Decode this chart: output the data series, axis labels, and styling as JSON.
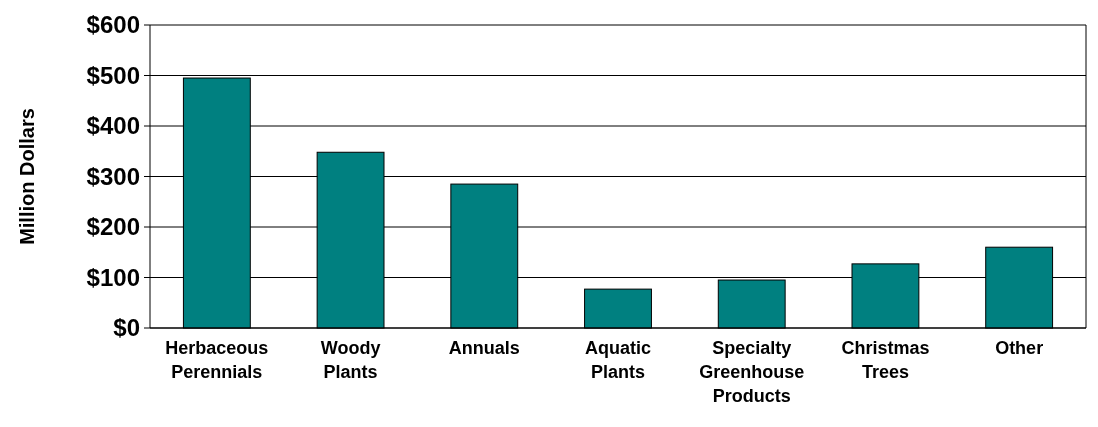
{
  "chart_data": {
    "type": "bar",
    "ylabel": "Million Dollars",
    "categories": [
      "Herbaceous Perennials",
      "Woody Plants",
      "Annuals",
      "Aquatic Plants",
      "Specialty Greenhouse Products",
      "Christmas Trees",
      "Other"
    ],
    "values": [
      495,
      348,
      285,
      77,
      95,
      127,
      160
    ],
    "color": "#008080",
    "ylim": [
      0,
      600
    ],
    "yticks": [
      {
        "value": 0,
        "label": "$0"
      },
      {
        "value": 100,
        "label": "$100"
      },
      {
        "value": 200,
        "label": "$200"
      },
      {
        "value": 300,
        "label": "$300"
      },
      {
        "value": 400,
        "label": "$400"
      },
      {
        "value": 500,
        "label": "$500"
      },
      {
        "value": 600,
        "label": "$600"
      }
    ],
    "grid": "y"
  }
}
